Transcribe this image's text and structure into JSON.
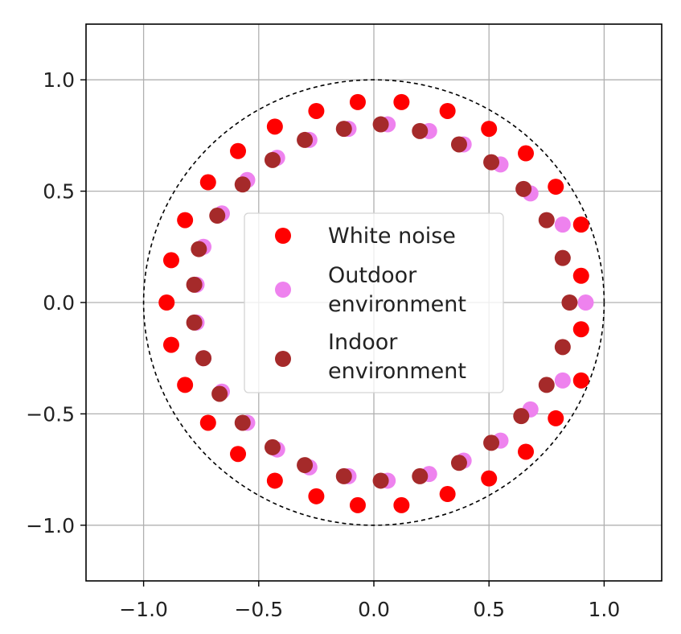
{
  "chart_data": {
    "type": "scatter",
    "title": "",
    "xlabel": "",
    "ylabel": "",
    "xlim": [
      -1.25,
      1.25
    ],
    "ylim": [
      -1.25,
      1.25
    ],
    "xticks": [
      -1.0,
      -0.5,
      0.0,
      0.5,
      1.0
    ],
    "yticks": [
      -1.0,
      -0.5,
      0.0,
      0.5,
      1.0
    ],
    "xtick_labels": [
      "−1.0",
      "−0.5",
      "0.0",
      "0.5",
      "1.0"
    ],
    "ytick_labels": [
      "−1.0",
      "−0.5",
      "0.0",
      "0.5",
      "1.0"
    ],
    "grid": true,
    "legend_position": "center",
    "reference_circle": {
      "radius": 1.0,
      "style": "dashed",
      "color": "#000000"
    },
    "series": [
      {
        "name": "White noise",
        "color": "#ff0000",
        "points": [
          [
            0.9,
            0.12
          ],
          [
            0.9,
            0.35
          ],
          [
            0.79,
            0.52
          ],
          [
            0.66,
            0.67
          ],
          [
            0.5,
            0.78
          ],
          [
            0.32,
            0.86
          ],
          [
            0.12,
            0.9
          ],
          [
            -0.07,
            0.9
          ],
          [
            -0.25,
            0.86
          ],
          [
            -0.43,
            0.79
          ],
          [
            -0.59,
            0.68
          ],
          [
            -0.72,
            0.54
          ],
          [
            -0.82,
            0.37
          ],
          [
            -0.88,
            0.19
          ],
          [
            -0.9,
            0.0
          ],
          [
            -0.88,
            -0.19
          ],
          [
            -0.82,
            -0.37
          ],
          [
            -0.72,
            -0.54
          ],
          [
            -0.59,
            -0.68
          ],
          [
            -0.43,
            -0.8
          ],
          [
            -0.25,
            -0.87
          ],
          [
            -0.07,
            -0.91
          ],
          [
            0.12,
            -0.91
          ],
          [
            0.32,
            -0.86
          ],
          [
            0.5,
            -0.79
          ],
          [
            0.66,
            -0.67
          ],
          [
            0.79,
            -0.52
          ],
          [
            0.9,
            -0.35
          ],
          [
            0.9,
            -0.12
          ]
        ]
      },
      {
        "name": "Outdoor environment",
        "color": "#ee82ee",
        "points": [
          [
            0.92,
            0.0
          ],
          [
            0.82,
            0.35
          ],
          [
            0.68,
            0.49
          ],
          [
            0.55,
            0.62
          ],
          [
            0.39,
            0.71
          ],
          [
            0.24,
            0.77
          ],
          [
            0.06,
            0.8
          ],
          [
            -0.11,
            0.78
          ],
          [
            -0.28,
            0.73
          ],
          [
            -0.42,
            0.65
          ],
          [
            -0.55,
            0.55
          ],
          [
            -0.66,
            0.4
          ],
          [
            -0.74,
            0.25
          ],
          [
            -0.77,
            0.08
          ],
          [
            -0.77,
            -0.09
          ],
          [
            -0.74,
            -0.25
          ],
          [
            -0.66,
            -0.4
          ],
          [
            -0.55,
            -0.54
          ],
          [
            -0.42,
            -0.66
          ],
          [
            -0.28,
            -0.74
          ],
          [
            -0.11,
            -0.78
          ],
          [
            0.06,
            -0.8
          ],
          [
            0.24,
            -0.77
          ],
          [
            0.39,
            -0.71
          ],
          [
            0.55,
            -0.62
          ],
          [
            0.68,
            -0.48
          ],
          [
            0.82,
            -0.35
          ]
        ]
      },
      {
        "name": "Indoor environment",
        "color": "#a52a2a",
        "points": [
          [
            0.85,
            0.0
          ],
          [
            0.82,
            0.2
          ],
          [
            0.75,
            0.37
          ],
          [
            0.65,
            0.51
          ],
          [
            0.51,
            0.63
          ],
          [
            0.37,
            0.71
          ],
          [
            0.2,
            0.77
          ],
          [
            0.03,
            0.8
          ],
          [
            -0.13,
            0.78
          ],
          [
            -0.3,
            0.73
          ],
          [
            -0.44,
            0.64
          ],
          [
            -0.57,
            0.53
          ],
          [
            -0.68,
            0.39
          ],
          [
            -0.76,
            0.24
          ],
          [
            -0.78,
            0.08
          ],
          [
            -0.78,
            -0.09
          ],
          [
            -0.74,
            -0.25
          ],
          [
            -0.67,
            -0.41
          ],
          [
            -0.57,
            -0.54
          ],
          [
            -0.44,
            -0.65
          ],
          [
            -0.3,
            -0.73
          ],
          [
            -0.13,
            -0.78
          ],
          [
            0.03,
            -0.8
          ],
          [
            0.2,
            -0.78
          ],
          [
            0.37,
            -0.72
          ],
          [
            0.51,
            -0.63
          ],
          [
            0.64,
            -0.51
          ],
          [
            0.75,
            -0.37
          ],
          [
            0.82,
            -0.2
          ]
        ]
      }
    ]
  }
}
